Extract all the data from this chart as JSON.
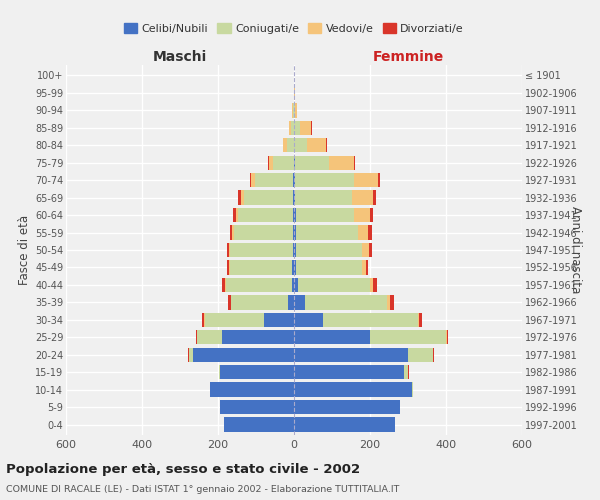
{
  "age_groups": [
    "0-4",
    "5-9",
    "10-14",
    "15-19",
    "20-24",
    "25-29",
    "30-34",
    "35-39",
    "40-44",
    "45-49",
    "50-54",
    "55-59",
    "60-64",
    "65-69",
    "70-74",
    "75-79",
    "80-84",
    "85-89",
    "90-94",
    "95-99",
    "100+"
  ],
  "birth_years": [
    "1997-2001",
    "1992-1996",
    "1987-1991",
    "1982-1986",
    "1977-1981",
    "1972-1976",
    "1967-1971",
    "1962-1966",
    "1957-1961",
    "1952-1956",
    "1947-1951",
    "1942-1946",
    "1937-1941",
    "1932-1936",
    "1927-1931",
    "1922-1926",
    "1917-1921",
    "1912-1916",
    "1907-1911",
    "1902-1906",
    "≤ 1901"
  ],
  "male_celibe": [
    185,
    195,
    220,
    195,
    265,
    190,
    80,
    15,
    5,
    4,
    3,
    3,
    3,
    2,
    2,
    0,
    0,
    0,
    0,
    0,
    0
  ],
  "male_coniugato": [
    0,
    0,
    0,
    2,
    12,
    65,
    155,
    150,
    175,
    165,
    165,
    155,
    145,
    130,
    100,
    55,
    18,
    8,
    3,
    1,
    0
  ],
  "male_vedovo": [
    0,
    0,
    0,
    0,
    0,
    1,
    1,
    2,
    2,
    3,
    3,
    4,
    5,
    8,
    10,
    12,
    10,
    5,
    1,
    0,
    0
  ],
  "male_divorziato": [
    0,
    0,
    0,
    0,
    1,
    2,
    5,
    8,
    8,
    5,
    6,
    7,
    8,
    8,
    5,
    2,
    2,
    1,
    0,
    0,
    0
  ],
  "female_celibe": [
    265,
    280,
    310,
    290,
    300,
    200,
    75,
    30,
    10,
    5,
    5,
    4,
    4,
    3,
    2,
    2,
    0,
    0,
    0,
    0,
    0
  ],
  "female_coniugata": [
    0,
    0,
    2,
    10,
    65,
    200,
    250,
    215,
    190,
    175,
    175,
    165,
    155,
    150,
    155,
    90,
    35,
    15,
    3,
    1,
    0
  ],
  "female_vedova": [
    0,
    0,
    0,
    1,
    2,
    3,
    5,
    8,
    8,
    10,
    18,
    25,
    40,
    55,
    65,
    65,
    50,
    30,
    5,
    2,
    0
  ],
  "female_divorziata": [
    0,
    0,
    0,
    1,
    2,
    3,
    8,
    10,
    10,
    5,
    8,
    10,
    10,
    8,
    5,
    3,
    3,
    2,
    0,
    0,
    0
  ],
  "colors": {
    "celibe": "#4472c4",
    "coniugato": "#c8d9a0",
    "vedovo": "#f5c47a",
    "divorziato": "#d9352a"
  },
  "title": "Popolazione per età, sesso e stato civile - 2002",
  "subtitle": "COMUNE DI RACALE (LE) - Dati ISTAT 1° gennaio 2002 - Elaborazione TUTTITALIA.IT",
  "xlabel_left": "Maschi",
  "xlabel_right": "Femmine",
  "ylabel_left": "Fasce di età",
  "ylabel_right": "Anni di nascita",
  "xlim": 600,
  "background_color": "#f0f0f0",
  "grid_color": "#ffffff"
}
